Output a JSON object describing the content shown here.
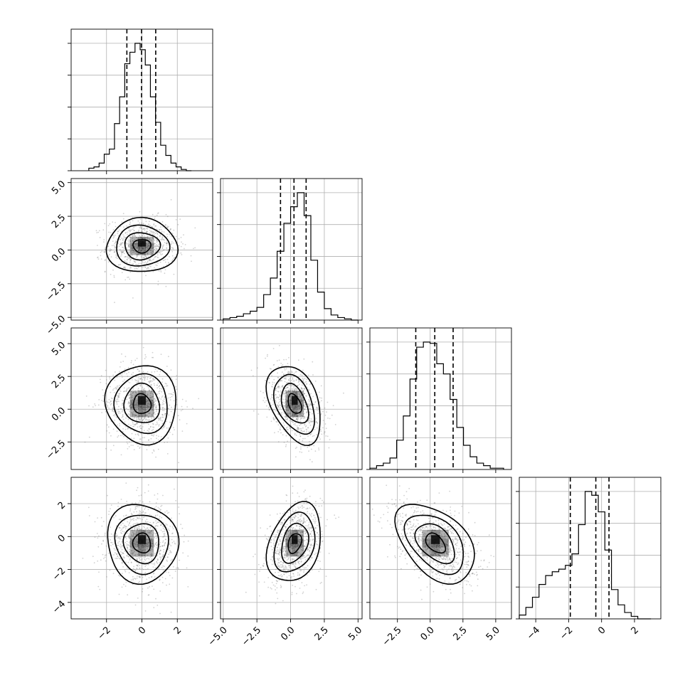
{
  "chart_data": {
    "type": "corner",
    "n_params": 4,
    "quantiles": [
      0.16,
      0.5,
      0.84
    ],
    "grid": true,
    "colors": {
      "line": "#000000",
      "grid": "#b0b0b0",
      "points": "#7a7a7a",
      "density": "#000000"
    },
    "params": [
      {
        "range": [
          -4.0,
          4.0
        ],
        "ticks": [
          -2,
          0,
          2
        ],
        "tick_labels": [
          "−2",
          "0",
          "2"
        ],
        "mean": 0.0,
        "std": 1.0,
        "quantile_lines": [
          -0.85,
          -0.02,
          0.78
        ]
      },
      {
        "range": [
          -5.2,
          5.3
        ],
        "ticks": [
          -5.0,
          -2.5,
          0.0,
          2.5,
          5.0
        ],
        "tick_labels": [
          "−5.0",
          "−2.5",
          "0.0",
          "2.5",
          "5.0"
        ],
        "mean": 0.3,
        "std": 1.0,
        "quantile_lines": [
          -0.75,
          0.25,
          1.15
        ]
      },
      {
        "range": [
          -4.6,
          6.2
        ],
        "ticks": [
          -2.5,
          0.0,
          2.5,
          5.0
        ],
        "tick_labels": [
          "−2.5",
          "0.0",
          "2.5",
          "5.0"
        ],
        "mean": 0.4,
        "std": 1.5,
        "quantile_lines": [
          -1.1,
          0.35,
          1.75
        ]
      },
      {
        "range": [
          -5.0,
          3.6
        ],
        "ticks": [
          -4,
          -2,
          0,
          2
        ],
        "tick_labels": [
          "−4",
          "−2",
          "0",
          "2"
        ],
        "mean": -0.4,
        "std": 1.2,
        "quantile_lines": [
          -1.9,
          -0.35,
          0.45
        ]
      }
    ],
    "histograms": [
      {
        "param": 0,
        "bin_edges": [
          -3.0,
          2.8
        ],
        "counts": [
          0.02,
          0.03,
          0.06,
          0.13,
          0.17,
          0.37,
          0.58,
          0.84,
          0.93,
          1.0,
          0.95,
          0.83,
          0.58,
          0.38,
          0.2,
          0.12,
          0.06,
          0.03,
          0.01,
          0.0
        ]
      },
      {
        "param": 1,
        "bin_edges": [
          -5.0,
          5.0
        ],
        "counts": [
          0.01,
          0.02,
          0.03,
          0.05,
          0.07,
          0.1,
          0.2,
          0.33,
          0.54,
          0.76,
          0.89,
          1.0,
          0.82,
          0.47,
          0.22,
          0.09,
          0.04,
          0.02,
          0.01,
          0.0
        ]
      },
      {
        "param": 2,
        "bin_edges": [
          -4.6,
          5.6
        ],
        "counts": [
          0.01,
          0.03,
          0.05,
          0.09,
          0.23,
          0.42,
          0.71,
          0.96,
          1.0,
          0.99,
          0.83,
          0.75,
          0.55,
          0.33,
          0.19,
          0.1,
          0.05,
          0.03,
          0.01,
          0.01
        ]
      },
      {
        "param": 3,
        "bin_edges": [
          -5.0,
          3.0
        ],
        "counts": [
          0.03,
          0.09,
          0.17,
          0.27,
          0.34,
          0.37,
          0.39,
          0.42,
          0.51,
          0.74,
          1.0,
          0.97,
          0.84,
          0.54,
          0.23,
          0.11,
          0.05,
          0.02,
          0.0,
          0.0
        ]
      }
    ],
    "pairs": [
      {
        "x_param": 0,
        "y_param": 1,
        "rho": 0.0
      },
      {
        "x_param": 0,
        "y_param": 2,
        "rho": -0.05
      },
      {
        "x_param": 1,
        "y_param": 2,
        "rho": -0.4
      },
      {
        "x_param": 0,
        "y_param": 3,
        "rho": -0.05
      },
      {
        "x_param": 1,
        "y_param": 3,
        "rho": 0.3
      },
      {
        "x_param": 2,
        "y_param": 3,
        "rho": -0.45
      }
    ],
    "contour_levels_sigma": [
      0.5,
      1.0,
      1.5,
      2.0
    ]
  }
}
